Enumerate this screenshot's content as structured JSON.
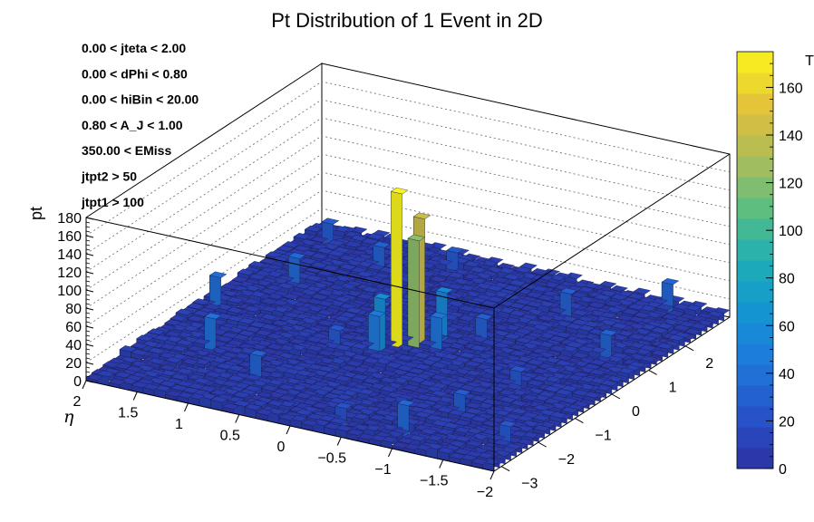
{
  "chart_data": {
    "type": "lego3d",
    "title": "Pt Distribution of 1 Event in 2D",
    "xlabel": "η",
    "ylabel": "",
    "zlabel": "pt",
    "colorbar_label": "T",
    "xlim": [
      -2,
      2
    ],
    "ylim": [
      -3.2,
      3.2
    ],
    "zlim": [
      0,
      180
    ],
    "colorbar_lim": [
      0,
      175
    ],
    "x_ticks": [
      "2",
      "1.5",
      "1",
      "0.5",
      "0",
      "−0.5",
      "−1",
      "−1.5",
      "−2"
    ],
    "y_ticks": [
      "−3",
      "−2",
      "−1",
      "0",
      "1",
      "2"
    ],
    "z_ticks": [
      "0",
      "20",
      "40",
      "60",
      "80",
      "100",
      "120",
      "140",
      "160",
      "180"
    ],
    "colorbar_ticks": [
      "0",
      "20",
      "40",
      "60",
      "80",
      "100",
      "120",
      "140",
      "160"
    ],
    "cuts": [
      "0.00 < jteta < 2.00",
      "0.00 < dPhi < 0.80",
      "0.00 < hiBin < 20.00",
      "0.80 < A_J < 1.00",
      "350.00 < EMiss",
      "jtpt2 > 50",
      "jtpt1 > 100"
    ],
    "background_level": 8,
    "peaks": [
      {
        "eta": 0.08,
        "phi": -0.05,
        "pt": 175
      },
      {
        "eta": -0.08,
        "phi": 0.3,
        "pt": 142
      },
      {
        "eta": 0.0,
        "phi": 0.15,
        "pt": 122
      },
      {
        "eta": 0.2,
        "phi": -0.2,
        "pt": 60
      },
      {
        "eta": -0.2,
        "phi": 0.55,
        "pt": 55
      },
      {
        "eta": 0.15,
        "phi": -0.45,
        "pt": 45
      },
      {
        "eta": -0.3,
        "phi": 0.05,
        "pt": 42
      },
      {
        "eta": 0.35,
        "phi": 0.45,
        "pt": 30
      },
      {
        "eta": -0.5,
        "phi": 0.75,
        "pt": 30
      },
      {
        "eta": 0.5,
        "phi": -0.6,
        "pt": 25
      },
      {
        "eta": 1.85,
        "phi": -0.1,
        "pt": 38
      },
      {
        "eta": 1.55,
        "phi": 1.2,
        "pt": 35
      },
      {
        "eta": 1.35,
        "phi": -1.5,
        "pt": 40
      },
      {
        "eta": 0.75,
        "phi": -2.1,
        "pt": 32
      },
      {
        "eta": -0.95,
        "phi": -2.7,
        "pt": 35
      },
      {
        "eta": -1.55,
        "phi": 2.9,
        "pt": 33
      },
      {
        "eta": -1.6,
        "phi": 1.0,
        "pt": 32
      },
      {
        "eta": -0.8,
        "phi": 2.1,
        "pt": 30
      },
      {
        "eta": -1.15,
        "phi": -1.7,
        "pt": 28
      },
      {
        "eta": 1.05,
        "phi": 2.2,
        "pt": 30
      },
      {
        "eta": 0.55,
        "phi": 2.7,
        "pt": 26
      },
      {
        "eta": -1.3,
        "phi": -0.6,
        "pt": 24
      },
      {
        "eta": 1.7,
        "phi": 2.6,
        "pt": 27
      },
      {
        "eta": -1.85,
        "phi": -2.3,
        "pt": 26
      },
      {
        "eta": -0.4,
        "phi": -2.8,
        "pt": 22
      }
    ]
  }
}
